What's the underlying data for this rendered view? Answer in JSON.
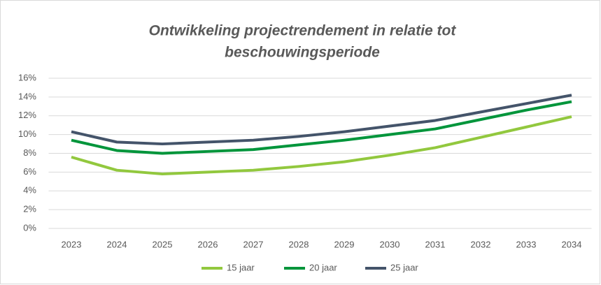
{
  "chart_data": {
    "type": "line",
    "title": [
      "Ontwikkeling projectrendement  in relatie tot",
      "beschouwingsperiode"
    ],
    "categories": [
      "2023",
      "2024",
      "2025",
      "2026",
      "2027",
      "2028",
      "2029",
      "2030",
      "2031",
      "2032",
      "2033",
      "2034"
    ],
    "series": [
      {
        "name": "15 jaar",
        "color": "#92c83e",
        "values": [
          7.6,
          6.2,
          5.8,
          6.0,
          6.2,
          6.6,
          7.1,
          7.8,
          8.6,
          9.7,
          10.8,
          11.9
        ]
      },
      {
        "name": "20 jaar",
        "color": "#00953b",
        "values": [
          9.4,
          8.3,
          8.0,
          8.2,
          8.4,
          8.9,
          9.4,
          10.0,
          10.6,
          11.6,
          12.6,
          13.5
        ]
      },
      {
        "name": "25 jaar",
        "color": "#44546a",
        "values": [
          10.3,
          9.2,
          9.0,
          9.2,
          9.4,
          9.8,
          10.3,
          10.9,
          11.5,
          12.4,
          13.3,
          14.2
        ]
      }
    ],
    "ylim": [
      0,
      16
    ],
    "yticks": [
      {
        "value": 0,
        "label": "0%"
      },
      {
        "value": 2,
        "label": "2%"
      },
      {
        "value": 4,
        "label": "4%"
      },
      {
        "value": 6,
        "label": "6%"
      },
      {
        "value": 8,
        "label": "8%"
      },
      {
        "value": 10,
        "label": "10%"
      },
      {
        "value": 12,
        "label": "12%"
      },
      {
        "value": 14,
        "label": "14%"
      },
      {
        "value": 16,
        "label": "16%"
      }
    ],
    "grid": true,
    "legend": "bottom"
  }
}
